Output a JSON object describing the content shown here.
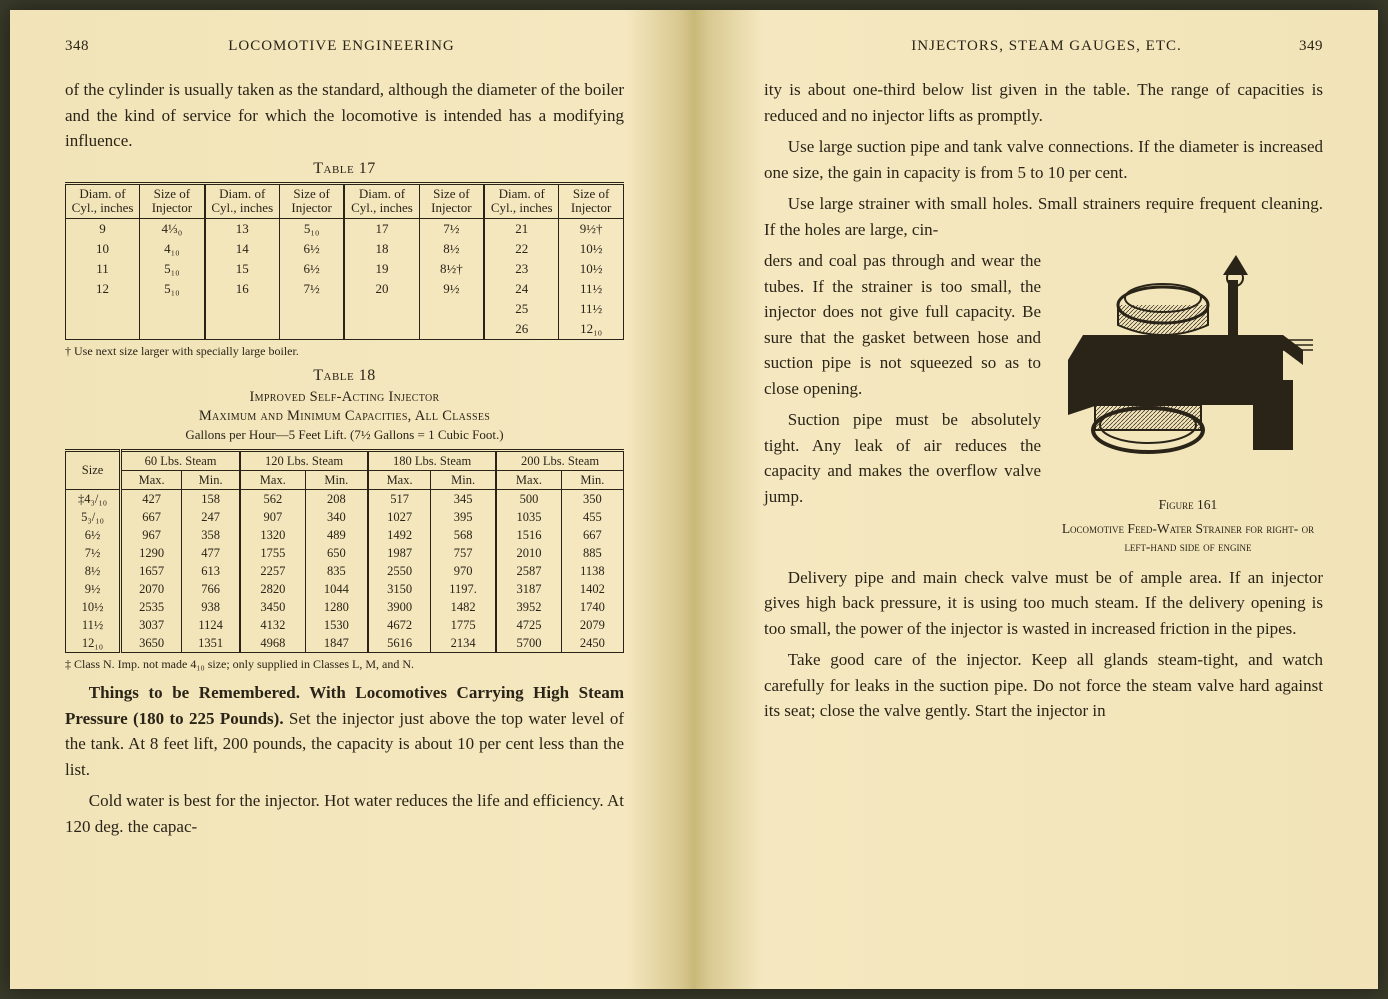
{
  "left": {
    "pageNum": "348",
    "head": "LOCOMOTIVE ENGINEERING",
    "para1": "of the cylinder is usually taken as the standard, although the diameter of the boiler and the kind of service for which the locomotive is intended has a modifying influence.",
    "t17caption": "Table 17",
    "t17headers": [
      "Diam. of Cyl., inches",
      "Size of Injector",
      "Diam. of Cyl., inches",
      "Size of Injector",
      "Diam. of Cyl., inches",
      "Size of Injector",
      "Diam. of Cyl., inches",
      "Size of Injector"
    ],
    "t17rows": [
      [
        "9",
        "4⅓₀",
        "13",
        "5₁₀",
        "17",
        "7½",
        "21",
        "9½†"
      ],
      [
        "10",
        "4₁₀",
        "14",
        "6½",
        "18",
        "8½",
        "22",
        "10½"
      ],
      [
        "11",
        "5₁₀",
        "15",
        "6½",
        "19",
        "8½†",
        "23",
        "10½"
      ],
      [
        "12",
        "5₁₀",
        "16",
        "7½",
        "20",
        "9½",
        "24",
        "11½"
      ],
      [
        "",
        "",
        "",
        "",
        "",
        "",
        "25",
        "11½"
      ],
      [
        "",
        "",
        "",
        "",
        "",
        "",
        "26",
        "12₁₀"
      ]
    ],
    "t17foot": "† Use next size larger with specially large boiler.",
    "t18caption": "Table 18",
    "t18sub1": "Improved Self-Acting Injector",
    "t18sub2": "Maximum and Minimum Capacities,  All Classes",
    "t18note": "Gallons per Hour—5 Feet Lift.   (7½ Gallons = 1 Cubic Foot.)",
    "t18groupA": "60 Lbs. Steam",
    "t18groupB": "120 Lbs. Steam",
    "t18groupC": "180 Lbs. Steam",
    "t18groupD": "200 Lbs. Steam",
    "t18size": "Size",
    "t18max": "Max.",
    "t18min": "Min.",
    "t18rows": [
      [
        "‡4₃/₁₀",
        "427",
        "158",
        "562",
        "208",
        "517",
        "345",
        "500",
        "350"
      ],
      [
        "5₃/₁₀",
        "667",
        "247",
        "907",
        "340",
        "1027",
        "395",
        "1035",
        "455"
      ],
      [
        "6½",
        "967",
        "358",
        "1320",
        "489",
        "1492",
        "568",
        "1516",
        "667"
      ],
      [
        "7½",
        "1290",
        "477",
        "1755",
        "650",
        "1987",
        "757",
        "2010",
        "885"
      ],
      [
        "8½",
        "1657",
        "613",
        "2257",
        "835",
        "2550",
        "970",
        "2587",
        "1138"
      ],
      [
        "9½",
        "2070",
        "766",
        "2820",
        "1044",
        "3150",
        "1197.",
        "3187",
        "1402"
      ],
      [
        "10½",
        "2535",
        "938",
        "3450",
        "1280",
        "3900",
        "1482",
        "3952",
        "1740"
      ],
      [
        "11½",
        "3037",
        "1124",
        "4132",
        "1530",
        "4672",
        "1775",
        "4725",
        "2079"
      ],
      [
        "12₁₀",
        "3650",
        "1351",
        "4968",
        "1847",
        "5616",
        "2134",
        "5700",
        "2450"
      ]
    ],
    "t18foot": "‡ Class N.   Imp. not made 4₁₀ size;  only supplied in Classes L, M, and N.",
    "para2a": "Things to be Remembered.   With Locomotives Carrying High Steam Pressure (180 to 225 Pounds).",
    "para2b": "   Set the injector just above the top water level of the tank. At 8 feet lift, 200 pounds, the capacity is about 10 per cent less than the list.",
    "para3": "Cold water is best for the injector.   Hot water reduces the life and efficiency.  At 120 deg. the capac-"
  },
  "right": {
    "head": "INJECTORS, STEAM GAUGES, ETC.",
    "pageNum": "349",
    "para1": "ity is about one-third below list given in the table. The range of capacities is reduced and no injector lifts as promptly.",
    "para2": "Use large suction pipe and tank valve connections. If the diameter is increased one size, the gain in capacity is from 5 to 10 per cent.",
    "para3a": "Use large strainer with small holes.  Small strainers require frequent cleaning.   If the holes are large, cin",
    "para3b": "ders and coal pas through and wear the tubes. If the strainer is too small, the injector does not give full capacity.  Be sure that the gasket between hose and suction pipe is not squeezed so as to close opening.",
    "para4": "Suction pipe must be absolutely tight. Any leak of air reduces the capacity and makes the overflow valve jump.",
    "figLabel": "Figure 161",
    "figCaption": "Locomotive Feed-Water Strainer for right- or left-hand side of engine",
    "para5": "Delivery pipe and main check valve must be of ample area.  If an injector gives high back pressure, it is using too much steam.  If the delivery opening is too small, the power of the injector is wasted in increased friction in the pipes.",
    "para6": "Take good care of the injector.  Keep all glands steam-tight, and watch carefully for leaks in the suction pipe.  Do not force the steam valve hard against its seat; close the valve gently.  Start the injector in"
  }
}
